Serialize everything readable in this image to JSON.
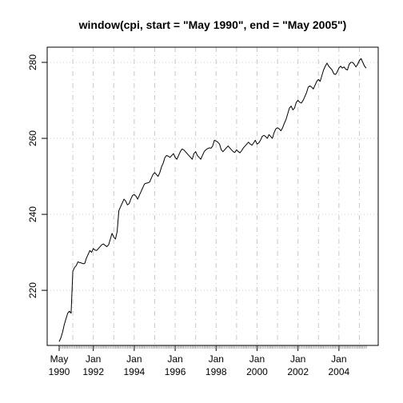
{
  "chart_data": {
    "type": "line",
    "title": "window(cpi, start = \"May 1990\", end = \"May 2005\")",
    "xlabel": "",
    "ylabel": "",
    "x_range": [
      "1990-05",
      "2005-05"
    ],
    "y_range": [
      205.5,
      284
    ],
    "grid": true,
    "y_ticks": [
      220,
      240,
      260,
      280
    ],
    "x_ticks": [
      {
        "month": "1990-05",
        "line1": "May",
        "line2": "1990"
      },
      {
        "month": "1992-01",
        "line1": "Jan",
        "line2": "1992"
      },
      {
        "month": "1994-01",
        "line1": "Jan",
        "line2": "1994"
      },
      {
        "month": "1996-01",
        "line1": "Jan",
        "line2": "1996"
      },
      {
        "month": "1998-01",
        "line1": "Jan",
        "line2": "1998"
      },
      {
        "month": "2000-01",
        "line1": "Jan",
        "line2": "2000"
      },
      {
        "month": "2002-01",
        "line1": "Jan",
        "line2": "2002"
      },
      {
        "month": "2004-01",
        "line1": "Jan",
        "line2": "2004"
      }
    ],
    "series": [
      {
        "points": [
          [
            "1990-05",
            206.5
          ],
          [
            "1990-06",
            207.5
          ],
          [
            "1990-07",
            209.0
          ],
          [
            "1990-08",
            211.0
          ],
          [
            "1990-09",
            212.5
          ],
          [
            "1990-10",
            214.0
          ],
          [
            "1990-11",
            214.5
          ],
          [
            "1990-12",
            214.0
          ],
          [
            "1991-01",
            225.0
          ],
          [
            "1991-02",
            226.0
          ],
          [
            "1991-03",
            226.5
          ],
          [
            "1991-04",
            227.5
          ],
          [
            "1991-05",
            227.3
          ],
          [
            "1991-06",
            227.2
          ],
          [
            "1991-07",
            227.0
          ],
          [
            "1991-08",
            227.1
          ],
          [
            "1991-09",
            228.5
          ],
          [
            "1991-10",
            229.5
          ],
          [
            "1991-11",
            230.5
          ],
          [
            "1991-12",
            230.0
          ],
          [
            "1992-01",
            231.0
          ],
          [
            "1992-02",
            230.6
          ],
          [
            "1992-03",
            230.5
          ],
          [
            "1992-04",
            231.0
          ],
          [
            "1992-05",
            231.5
          ],
          [
            "1992-06",
            232.0
          ],
          [
            "1992-07",
            232.2
          ],
          [
            "1992-08",
            231.8
          ],
          [
            "1992-09",
            231.5
          ],
          [
            "1992-10",
            232.0
          ],
          [
            "1992-11",
            233.5
          ],
          [
            "1992-12",
            235.0
          ],
          [
            "1993-01",
            234.0
          ],
          [
            "1993-02",
            233.5
          ],
          [
            "1993-03",
            235.5
          ],
          [
            "1993-04",
            241.0
          ],
          [
            "1993-05",
            242.0
          ],
          [
            "1993-06",
            243.0
          ],
          [
            "1993-07",
            244.0
          ],
          [
            "1993-08",
            243.5
          ],
          [
            "1993-09",
            242.5
          ],
          [
            "1993-10",
            242.8
          ],
          [
            "1993-11",
            244.0
          ],
          [
            "1993-12",
            245.0
          ],
          [
            "1994-01",
            245.2
          ],
          [
            "1994-02",
            244.8
          ],
          [
            "1994-03",
            244.0
          ],
          [
            "1994-04",
            245.0
          ],
          [
            "1994-05",
            246.0
          ],
          [
            "1994-06",
            247.0
          ],
          [
            "1994-07",
            248.0
          ],
          [
            "1994-08",
            248.2
          ],
          [
            "1994-09",
            248.3
          ],
          [
            "1994-10",
            248.5
          ],
          [
            "1994-11",
            249.5
          ],
          [
            "1994-12",
            250.5
          ],
          [
            "1995-01",
            251.0
          ],
          [
            "1995-02",
            250.5
          ],
          [
            "1995-03",
            250.0
          ],
          [
            "1995-04",
            251.0
          ],
          [
            "1995-05",
            252.5
          ],
          [
            "1995-06",
            253.5
          ],
          [
            "1995-07",
            255.0
          ],
          [
            "1995-08",
            255.5
          ],
          [
            "1995-09",
            255.3
          ],
          [
            "1995-10",
            255.0
          ],
          [
            "1995-11",
            255.5
          ],
          [
            "1995-12",
            256.0
          ],
          [
            "1996-01",
            255.0
          ],
          [
            "1996-02",
            254.5
          ],
          [
            "1996-03",
            255.5
          ],
          [
            "1996-04",
            256.5
          ],
          [
            "1996-05",
            257.2
          ],
          [
            "1996-06",
            257.0
          ],
          [
            "1996-07",
            256.5
          ],
          [
            "1996-08",
            256.0
          ],
          [
            "1996-09",
            255.5
          ],
          [
            "1996-10",
            255.0
          ],
          [
            "1996-11",
            254.5
          ],
          [
            "1996-12",
            256.0
          ],
          [
            "1997-01",
            256.5
          ],
          [
            "1997-02",
            255.5
          ],
          [
            "1997-03",
            255.0
          ],
          [
            "1997-04",
            254.5
          ],
          [
            "1997-05",
            255.5
          ],
          [
            "1997-06",
            256.5
          ],
          [
            "1997-07",
            257.0
          ],
          [
            "1997-08",
            257.3
          ],
          [
            "1997-09",
            257.5
          ],
          [
            "1997-10",
            257.4
          ],
          [
            "1997-11",
            258.0
          ],
          [
            "1997-12",
            259.5
          ],
          [
            "1998-01",
            259.3
          ],
          [
            "1998-02",
            259.0
          ],
          [
            "1998-03",
            258.5
          ],
          [
            "1998-04",
            257.0
          ],
          [
            "1998-05",
            256.5
          ],
          [
            "1998-06",
            257.0
          ],
          [
            "1998-07",
            257.5
          ],
          [
            "1998-08",
            258.0
          ],
          [
            "1998-09",
            257.5
          ],
          [
            "1998-10",
            257.0
          ],
          [
            "1998-11",
            256.5
          ],
          [
            "1998-12",
            256.3
          ],
          [
            "1999-01",
            257.0
          ],
          [
            "1999-02",
            256.5
          ],
          [
            "1999-03",
            256.2
          ],
          [
            "1999-04",
            256.8
          ],
          [
            "1999-05",
            257.5
          ],
          [
            "1999-06",
            258.0
          ],
          [
            "1999-07",
            258.5
          ],
          [
            "1999-08",
            259.0
          ],
          [
            "1999-09",
            258.5
          ],
          [
            "1999-10",
            258.2
          ],
          [
            "1999-11",
            258.8
          ],
          [
            "1999-12",
            259.5
          ],
          [
            "2000-01",
            258.5
          ],
          [
            "2000-02",
            258.8
          ],
          [
            "2000-03",
            259.5
          ],
          [
            "2000-04",
            260.5
          ],
          [
            "2000-05",
            260.8
          ],
          [
            "2000-06",
            260.5
          ],
          [
            "2000-07",
            260.0
          ],
          [
            "2000-08",
            261.0
          ],
          [
            "2000-09",
            260.5
          ],
          [
            "2000-10",
            260.0
          ],
          [
            "2000-11",
            261.5
          ],
          [
            "2000-12",
            262.5
          ],
          [
            "2001-01",
            262.8
          ],
          [
            "2001-02",
            262.5
          ],
          [
            "2001-03",
            262.0
          ],
          [
            "2001-04",
            262.8
          ],
          [
            "2001-05",
            264.0
          ],
          [
            "2001-06",
            265.0
          ],
          [
            "2001-07",
            266.5
          ],
          [
            "2001-08",
            268.0
          ],
          [
            "2001-09",
            268.5
          ],
          [
            "2001-10",
            267.5
          ],
          [
            "2001-11",
            268.0
          ],
          [
            "2001-12",
            269.5
          ],
          [
            "2002-01",
            270.0
          ],
          [
            "2002-02",
            269.5
          ],
          [
            "2002-03",
            269.3
          ],
          [
            "2002-04",
            270.0
          ],
          [
            "2002-05",
            271.0
          ],
          [
            "2002-06",
            272.0
          ],
          [
            "2002-07",
            273.5
          ],
          [
            "2002-08",
            273.8
          ],
          [
            "2002-09",
            273.5
          ],
          [
            "2002-10",
            273.0
          ],
          [
            "2002-11",
            274.0
          ],
          [
            "2002-12",
            275.0
          ],
          [
            "2003-01",
            275.5
          ],
          [
            "2003-02",
            275.0
          ],
          [
            "2003-03",
            276.5
          ],
          [
            "2003-04",
            278.0
          ],
          [
            "2003-05",
            279.0
          ],
          [
            "2003-06",
            279.8
          ],
          [
            "2003-07",
            279.0
          ],
          [
            "2003-08",
            278.5
          ],
          [
            "2003-09",
            278.0
          ],
          [
            "2003-10",
            277.0
          ],
          [
            "2003-11",
            276.8
          ],
          [
            "2003-12",
            277.5
          ],
          [
            "2004-01",
            278.5
          ],
          [
            "2004-02",
            279.0
          ],
          [
            "2004-03",
            278.5
          ],
          [
            "2004-04",
            278.8
          ],
          [
            "2004-05",
            278.2
          ],
          [
            "2004-06",
            278.0
          ],
          [
            "2004-07",
            279.5
          ],
          [
            "2004-08",
            280.0
          ],
          [
            "2004-09",
            280.0
          ],
          [
            "2004-10",
            279.5
          ],
          [
            "2004-11",
            278.8
          ],
          [
            "2004-12",
            279.5
          ],
          [
            "2005-01",
            280.5
          ],
          [
            "2005-02",
            281.0
          ],
          [
            "2005-03",
            280.0
          ],
          [
            "2005-04",
            279.0
          ],
          [
            "2005-05",
            278.5
          ]
        ]
      }
    ]
  }
}
